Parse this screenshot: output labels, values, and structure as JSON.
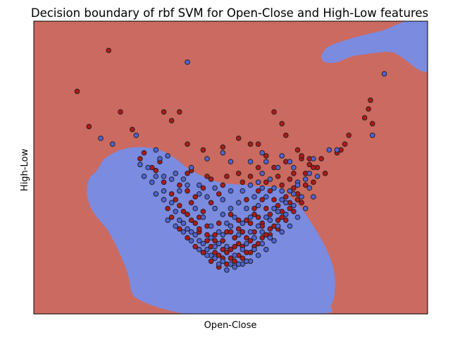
{
  "chart_data": {
    "type": "scatter",
    "title": "Decision boundary of rbf SVM for Open-Close and High-Low features",
    "xlabel": "Open-Close",
    "ylabel": "High-Low",
    "xticks": [],
    "yticks": [],
    "grid": false,
    "legend": "none",
    "xlim": [
      0,
      100
    ],
    "ylim": [
      0,
      100
    ],
    "colors": {
      "background_region": "#cb6a60",
      "boundary_region": "#7b8be0",
      "point_red": "#b01818",
      "point_blue": "#4f63d6",
      "point_edge": "#222222"
    },
    "regions": [
      {
        "class": "blue",
        "outline": [
          [
            16,
            49
          ],
          [
            18,
            53
          ],
          [
            22,
            56
          ],
          [
            27,
            57
          ],
          [
            32,
            56
          ],
          [
            36,
            53
          ],
          [
            40,
            49
          ],
          [
            47,
            45
          ],
          [
            54,
            44
          ],
          [
            62,
            43
          ],
          [
            65,
            40
          ],
          [
            68,
            36
          ],
          [
            71,
            30
          ],
          [
            74,
            23
          ],
          [
            76,
            16
          ],
          [
            76.5,
            9
          ],
          [
            75.5,
            3
          ],
          [
            72.5,
            0
          ],
          [
            42,
            0
          ],
          [
            35,
            1
          ],
          [
            28,
            4
          ],
          [
            25,
            7
          ],
          [
            24,
            13
          ],
          [
            22,
            20
          ],
          [
            19,
            28
          ],
          [
            15,
            35
          ],
          [
            13.5,
            41
          ],
          [
            14,
            46
          ]
        ]
      },
      {
        "class": "blue",
        "outline": [
          [
            73,
            88
          ],
          [
            74,
            86
          ],
          [
            77,
            86
          ],
          [
            81,
            88
          ],
          [
            86,
            89
          ],
          [
            90,
            89.5
          ],
          [
            92.5,
            88.5
          ],
          [
            100,
            83
          ],
          [
            100,
            100
          ],
          [
            94.5,
            100
          ],
          [
            89,
            97
          ],
          [
            83,
            95
          ],
          [
            78,
            93
          ],
          [
            74.5,
            91
          ]
        ]
      }
    ],
    "series": [
      {
        "class": "red",
        "points": [
          [
            11,
            76
          ],
          [
            14,
            64
          ],
          [
            19,
            90
          ],
          [
            22,
            69
          ],
          [
            25,
            63
          ],
          [
            33,
            69
          ],
          [
            35,
            66
          ],
          [
            37,
            69
          ],
          [
            39,
            58
          ],
          [
            43,
            56
          ],
          [
            48,
            57
          ],
          [
            52,
            60
          ],
          [
            55,
            58
          ],
          [
            57,
            58
          ],
          [
            59,
            54
          ],
          [
            61,
            69
          ],
          [
            63,
            65
          ],
          [
            64,
            61
          ],
          [
            67,
            56
          ],
          [
            68,
            53
          ],
          [
            70,
            51
          ],
          [
            72,
            50
          ],
          [
            74,
            48
          ],
          [
            77,
            55
          ],
          [
            78,
            56
          ],
          [
            79,
            58
          ],
          [
            80,
            61
          ],
          [
            84,
            67
          ],
          [
            85,
            70
          ],
          [
            86,
            65
          ],
          [
            85.5,
            73
          ],
          [
            30,
            50
          ],
          [
            33,
            45
          ],
          [
            35,
            41
          ],
          [
            37,
            37
          ],
          [
            39,
            34
          ],
          [
            41,
            31
          ],
          [
            42,
            28
          ],
          [
            44,
            25
          ],
          [
            45,
            23
          ],
          [
            46,
            21
          ],
          [
            48,
            19
          ],
          [
            50,
            19
          ],
          [
            52,
            20
          ],
          [
            54,
            21
          ],
          [
            56,
            23
          ],
          [
            58,
            26
          ],
          [
            60,
            29
          ],
          [
            62,
            32
          ],
          [
            63,
            35
          ],
          [
            65,
            38
          ],
          [
            67,
            41
          ],
          [
            69,
            44
          ],
          [
            71,
            45
          ],
          [
            35,
            33
          ],
          [
            37,
            29
          ],
          [
            39,
            26
          ],
          [
            41,
            23
          ],
          [
            43,
            21
          ],
          [
            45,
            18
          ],
          [
            47,
            16
          ],
          [
            49,
            17
          ],
          [
            51,
            18
          ],
          [
            53,
            19
          ],
          [
            55,
            21
          ],
          [
            57,
            24
          ],
          [
            59,
            27
          ],
          [
            61,
            30
          ],
          [
            63,
            33
          ],
          [
            65,
            36
          ],
          [
            67,
            39
          ],
          [
            36,
            39
          ],
          [
            38,
            35
          ],
          [
            40,
            32
          ],
          [
            42,
            29
          ],
          [
            44,
            27
          ],
          [
            46,
            25
          ],
          [
            48,
            22
          ],
          [
            50,
            22
          ],
          [
            52,
            24
          ],
          [
            54,
            26
          ],
          [
            56,
            28
          ],
          [
            58,
            31
          ],
          [
            60,
            34
          ],
          [
            62,
            37
          ],
          [
            64,
            40
          ],
          [
            66,
            43
          ],
          [
            34,
            36
          ],
          [
            40,
            38
          ],
          [
            43,
            35
          ],
          [
            47,
            31
          ],
          [
            49,
            28
          ],
          [
            51,
            26
          ],
          [
            53,
            28
          ],
          [
            55,
            31
          ],
          [
            57,
            33
          ],
          [
            59,
            36
          ],
          [
            61,
            39
          ],
          [
            45,
            38
          ],
          [
            50,
            34
          ],
          [
            52,
            32
          ],
          [
            56,
            36
          ],
          [
            58,
            39
          ],
          [
            60,
            42
          ],
          [
            63,
            44
          ],
          [
            47,
            41
          ],
          [
            54,
            39
          ],
          [
            57,
            42
          ],
          [
            50,
            28
          ],
          [
            48,
            25
          ],
          [
            46,
            27
          ],
          [
            44,
            30
          ],
          [
            42,
            33
          ],
          [
            52,
            29
          ],
          [
            54,
            32
          ],
          [
            56,
            34
          ],
          [
            58,
            30
          ],
          [
            60,
            27
          ],
          [
            62,
            29
          ],
          [
            64,
            32
          ],
          [
            66,
            35
          ],
          [
            68,
            38
          ],
          [
            49,
            21
          ],
          [
            51,
            23
          ],
          [
            47,
            20
          ],
          [
            53,
            23
          ],
          [
            55,
            25
          ],
          [
            41,
            40
          ],
          [
            39,
            42
          ],
          [
            37,
            44
          ],
          [
            43,
            43
          ],
          [
            45,
            46
          ],
          [
            55,
            47
          ],
          [
            59,
            45
          ],
          [
            62,
            47
          ],
          [
            65,
            46
          ],
          [
            66,
            48
          ],
          [
            69,
            48
          ],
          [
            71,
            50
          ],
          [
            73,
            53
          ],
          [
            28,
            55
          ],
          [
            27,
            53
          ],
          [
            31,
            49
          ],
          [
            32,
            52
          ],
          [
            39,
            48
          ],
          [
            40,
            49
          ],
          [
            44,
            47
          ],
          [
            48,
            44
          ],
          [
            49,
            47
          ],
          [
            52,
            48
          ],
          [
            53,
            45
          ],
          [
            57,
            50
          ],
          [
            61,
            50
          ],
          [
            64,
            52
          ],
          [
            68,
            54
          ],
          [
            70,
            53
          ]
        ]
      },
      {
        "class": "blue",
        "points": [
          [
            39,
            86
          ],
          [
            17,
            60
          ],
          [
            20,
            58
          ],
          [
            26,
            61
          ],
          [
            31,
            56
          ],
          [
            32,
            53
          ],
          [
            34,
            54
          ],
          [
            40,
            50
          ],
          [
            44,
            53
          ],
          [
            48,
            55
          ],
          [
            50,
            52
          ],
          [
            55,
            52
          ],
          [
            58,
            55
          ],
          [
            63,
            54
          ],
          [
            65,
            52
          ],
          [
            71,
            53
          ],
          [
            75,
            56
          ],
          [
            77,
            56
          ],
          [
            86,
            61
          ],
          [
            89,
            82
          ],
          [
            59,
            52
          ],
          [
            30,
            45
          ],
          [
            33,
            42
          ],
          [
            35,
            38
          ],
          [
            37,
            32
          ],
          [
            39,
            29
          ],
          [
            41,
            27
          ],
          [
            43,
            24
          ],
          [
            45,
            20
          ],
          [
            47,
            17
          ],
          [
            49,
            15
          ],
          [
            51,
            16
          ],
          [
            53,
            17
          ],
          [
            55,
            18
          ],
          [
            57,
            20
          ],
          [
            59,
            22
          ],
          [
            61,
            25
          ],
          [
            63,
            28
          ],
          [
            65,
            30
          ],
          [
            67,
            33
          ],
          [
            69,
            36
          ],
          [
            71,
            40
          ],
          [
            31,
            41
          ],
          [
            33,
            39
          ],
          [
            36,
            35
          ],
          [
            38,
            31
          ],
          [
            40,
            28
          ],
          [
            42,
            25
          ],
          [
            44,
            22
          ],
          [
            46,
            19
          ],
          [
            48,
            18
          ],
          [
            50,
            17
          ],
          [
            52,
            17
          ],
          [
            54,
            18
          ],
          [
            56,
            22
          ],
          [
            58,
            24
          ],
          [
            60,
            26
          ],
          [
            62,
            30
          ],
          [
            64,
            34
          ],
          [
            66,
            37
          ],
          [
            68,
            40
          ],
          [
            70,
            43
          ],
          [
            34,
            32
          ],
          [
            36,
            30
          ],
          [
            38,
            28
          ],
          [
            40,
            25
          ],
          [
            42,
            22
          ],
          [
            44,
            20
          ],
          [
            46,
            23
          ],
          [
            48,
            27
          ],
          [
            50,
            30
          ],
          [
            52,
            27
          ],
          [
            54,
            24
          ],
          [
            56,
            26
          ],
          [
            58,
            28
          ],
          [
            60,
            32
          ],
          [
            62,
            35
          ],
          [
            64,
            38
          ],
          [
            66,
            41
          ],
          [
            41,
            36
          ],
          [
            43,
            33
          ],
          [
            45,
            30
          ],
          [
            47,
            28
          ],
          [
            49,
            31
          ],
          [
            51,
            33
          ],
          [
            53,
            31
          ],
          [
            55,
            33
          ],
          [
            57,
            37
          ],
          [
            59,
            40
          ],
          [
            61,
            43
          ],
          [
            44,
            40
          ],
          [
            46,
            36
          ],
          [
            48,
            34
          ],
          [
            50,
            36
          ],
          [
            52,
            38
          ],
          [
            54,
            36
          ],
          [
            56,
            40
          ],
          [
            58,
            43
          ],
          [
            60,
            46
          ],
          [
            38,
            46
          ],
          [
            42,
            44
          ],
          [
            46,
            43
          ],
          [
            50,
            42
          ],
          [
            53,
            42
          ],
          [
            57,
            45
          ],
          [
            63,
            42
          ],
          [
            67,
            45
          ],
          [
            72,
            47
          ],
          [
            29,
            50
          ],
          [
            31,
            47
          ],
          [
            36,
            48
          ],
          [
            35,
            46
          ],
          [
            37,
            42
          ],
          [
            39,
            44
          ],
          [
            45,
            26
          ],
          [
            47,
            24
          ],
          [
            49,
            23
          ],
          [
            51,
            20
          ],
          [
            53,
            22
          ],
          [
            55,
            28
          ],
          [
            57,
            30
          ],
          [
            59,
            33
          ],
          [
            61,
            36
          ],
          [
            63,
            39
          ],
          [
            65,
            42
          ],
          [
            67,
            44
          ],
          [
            69,
            46
          ],
          [
            28,
            47
          ],
          [
            27,
            51
          ],
          [
            33,
            47
          ],
          [
            42,
            41
          ],
          [
            48,
            39
          ],
          [
            55,
            44
          ],
          [
            58,
            48
          ],
          [
            62,
            50
          ],
          [
            66,
            50
          ],
          [
            70,
            48
          ]
        ]
      }
    ]
  }
}
